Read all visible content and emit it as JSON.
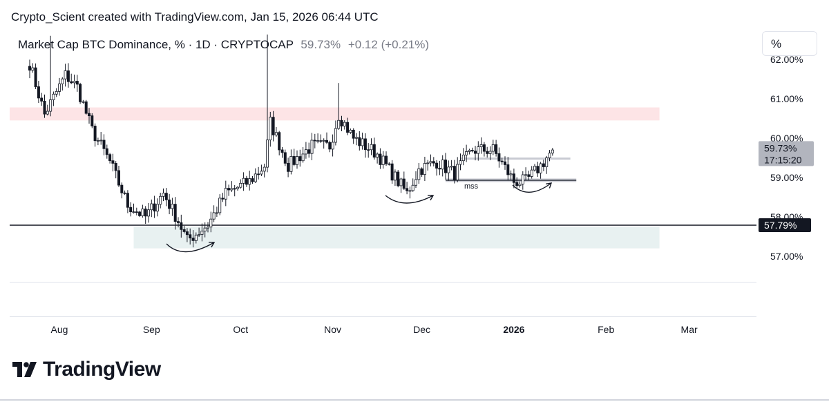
{
  "attribution": "Crypto_Scient created with TradingView.com, Jan 15, 2026 06:44 UTC",
  "legend": {
    "symbol": "Market Cap BTC Dominance, % · 1D · CRYPTOCAP",
    "last": "59.73%",
    "change": "+0.12 (+0.21%)"
  },
  "scale_button": "%",
  "brand": "TradingView",
  "colors": {
    "up": "#ffffff",
    "down": "#131722",
    "resistance_zone": "#fde4e6",
    "support_zone": "#e8f1f1",
    "support_line": "#131722",
    "arrow": "#131722"
  },
  "chart_data": {
    "type": "candlestick",
    "y_axis": {
      "ticks": [
        "57.00%",
        "58.00%",
        "59.00%",
        "60.00%",
        "61.00%",
        "62.00%"
      ],
      "tick_values": [
        57,
        58,
        59,
        60,
        61,
        62
      ]
    },
    "x_axis": {
      "ticks": [
        "Aug",
        "Sep",
        "Oct",
        "Nov",
        "Dec",
        "2026",
        "Feb",
        "Mar"
      ],
      "tick_dates": [
        "2025-08-01",
        "2025-09-01",
        "2025-10-01",
        "2025-11-01",
        "2025-12-01",
        "2026-01-01",
        "2026-02-01",
        "2026-03-01"
      ]
    },
    "badges": {
      "current_price": "59.73%",
      "countdown": "17:15:20",
      "support_level": "57.79%"
    },
    "annotations": {
      "mss_label": "mss",
      "resistance_zone": {
        "from": 60.45,
        "to": 60.78,
        "start": "2025-07-23",
        "end": "2026-02-19"
      },
      "support_zone": {
        "from": 57.2,
        "to": 57.75,
        "start": "2025-08-26",
        "end": "2026-02-19"
      },
      "support_line": 57.79,
      "mss_line": 58.93,
      "upper_line": 59.48
    },
    "close_anchors": [
      {
        "date": "2025-07-22",
        "close": 61.9
      },
      {
        "date": "2025-07-27",
        "close": 60.6
      },
      {
        "date": "2025-08-03",
        "close": 61.6
      },
      {
        "date": "2025-08-07",
        "close": 61.3
      },
      {
        "date": "2025-08-12",
        "close": 60.2
      },
      {
        "date": "2025-08-18",
        "close": 59.4
      },
      {
        "date": "2025-08-24",
        "close": 58.3
      },
      {
        "date": "2025-08-30",
        "close": 58.0
      },
      {
        "date": "2025-09-05",
        "close": 58.6
      },
      {
        "date": "2025-09-10",
        "close": 57.9
      },
      {
        "date": "2025-09-13",
        "close": 57.4
      },
      {
        "date": "2025-09-20",
        "close": 57.8
      },
      {
        "date": "2025-09-26",
        "close": 58.6
      },
      {
        "date": "2025-10-04",
        "close": 58.9
      },
      {
        "date": "2025-10-09",
        "close": 59.3
      },
      {
        "date": "2025-10-11",
        "close": 60.4
      },
      {
        "date": "2025-10-17",
        "close": 59.3
      },
      {
        "date": "2025-10-25",
        "close": 59.8
      },
      {
        "date": "2025-10-31",
        "close": 59.8
      },
      {
        "date": "2025-11-03",
        "close": 60.6
      },
      {
        "date": "2025-11-08",
        "close": 60.0
      },
      {
        "date": "2025-11-16",
        "close": 59.6
      },
      {
        "date": "2025-11-22",
        "close": 59.0
      },
      {
        "date": "2025-11-26",
        "close": 58.6
      },
      {
        "date": "2025-11-30",
        "close": 59.2
      },
      {
        "date": "2025-12-06",
        "close": 59.4
      },
      {
        "date": "2025-12-12",
        "close": 59.1
      },
      {
        "date": "2025-12-18",
        "close": 59.7
      },
      {
        "date": "2025-12-25",
        "close": 59.7
      },
      {
        "date": "2026-01-01",
        "close": 58.9
      },
      {
        "date": "2026-01-05",
        "close": 58.9
      },
      {
        "date": "2026-01-10",
        "close": 59.3
      },
      {
        "date": "2026-01-14",
        "close": 59.7
      }
    ]
  }
}
